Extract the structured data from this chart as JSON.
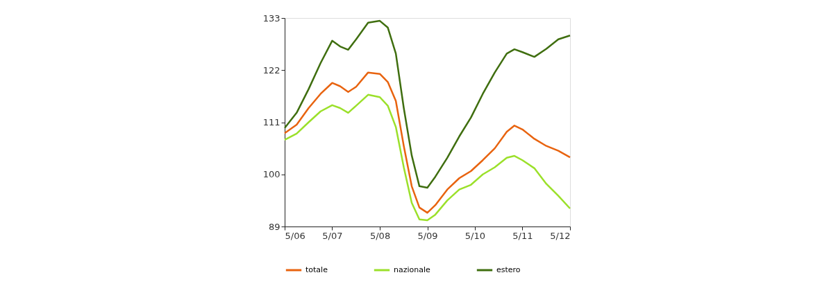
{
  "chart_data": {
    "type": "line",
    "x": [
      "2006-05",
      "2006-08",
      "2006-11",
      "2007-02",
      "2007-05",
      "2007-07",
      "2007-09",
      "2007-11",
      "2008-02",
      "2008-05",
      "2008-07",
      "2008-09",
      "2008-11",
      "2009-01",
      "2009-03",
      "2009-05",
      "2009-07",
      "2009-10",
      "2010-01",
      "2010-04",
      "2010-07",
      "2010-10",
      "2011-01",
      "2011-03",
      "2011-05",
      "2011-08",
      "2011-11",
      "2012-02",
      "2012-05"
    ],
    "series": [
      {
        "name": "totale",
        "color": "#e8630f",
        "values": [
          108.7,
          110.5,
          114,
          117,
          119.3,
          118.6,
          117.4,
          118.5,
          121.5,
          121.2,
          119.5,
          115.5,
          106,
          97.5,
          93,
          91.9,
          93.5,
          96.8,
          99.2,
          100.7,
          103,
          105.5,
          109,
          110.3,
          109.5,
          107.5,
          106,
          105,
          103.6
        ]
      },
      {
        "name": "nazionale",
        "color": "#9be02a",
        "values": [
          107.3,
          108.6,
          111,
          113.3,
          114.6,
          114,
          113,
          114.5,
          116.8,
          116.3,
          114.5,
          110,
          101.5,
          94,
          90.5,
          90.3,
          91.5,
          94.5,
          96.8,
          97.8,
          100,
          101.5,
          103.5,
          103.9,
          103,
          101.3,
          98,
          95.5,
          92.8
        ]
      },
      {
        "name": "estero",
        "color": "#3f6e0f",
        "values": [
          109.8,
          113,
          118,
          123.5,
          128.2,
          127,
          126.3,
          128.5,
          132,
          132.4,
          131,
          125.5,
          114,
          104,
          97.5,
          97.2,
          99.5,
          103.5,
          108,
          112,
          117,
          121.5,
          125.5,
          126.4,
          125.8,
          124.8,
          126.5,
          128.5,
          129.3
        ]
      }
    ],
    "xlim": [
      "2006-05",
      "2012-05"
    ],
    "xticks": [
      {
        "value": "2006-05",
        "label": "5/06"
      },
      {
        "value": "2007-05",
        "label": "5/07"
      },
      {
        "value": "2008-05",
        "label": "5/08"
      },
      {
        "value": "2009-05",
        "label": "5/09"
      },
      {
        "value": "2010-05",
        "label": "5/10"
      },
      {
        "value": "2011-05",
        "label": "5/11"
      },
      {
        "value": "2012-05",
        "label": "5/12"
      }
    ],
    "ylim": [
      89,
      133
    ],
    "yticks": [
      89,
      100,
      111,
      122,
      133
    ],
    "grid": false,
    "legend": "bottom",
    "marker": "none",
    "line_style": "solid"
  }
}
